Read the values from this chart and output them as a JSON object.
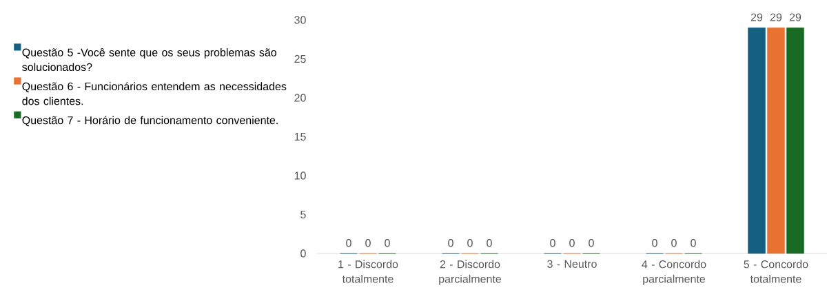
{
  "chart_data": {
    "type": "bar",
    "categories": [
      "1 - Discordo totalmente",
      "2 - Discordo parcialmente",
      "3 - Neutro",
      "4 - Concordo parcialmente",
      "5 - Concordo totalmente"
    ],
    "series": [
      {
        "name": "Questão 5 -Você sente que os seus problemas são solucionados?",
        "color": "#156082",
        "values": [
          0,
          0,
          0,
          0,
          29
        ]
      },
      {
        "name": "Questão 6 - Funcionários entendem as necessidades dos clientes.",
        "color": "#e97132",
        "values": [
          0,
          0,
          0,
          0,
          29
        ]
      },
      {
        "name": "Questão 7 - Horário de funcionamento conveniente.",
        "color": "#196b24",
        "values": [
          0,
          0,
          0,
          0,
          29
        ]
      }
    ],
    "ylim": [
      0,
      30
    ],
    "yticks": [
      0,
      5,
      10,
      15,
      20,
      25,
      30
    ],
    "data_labels": true,
    "legend": "left"
  }
}
